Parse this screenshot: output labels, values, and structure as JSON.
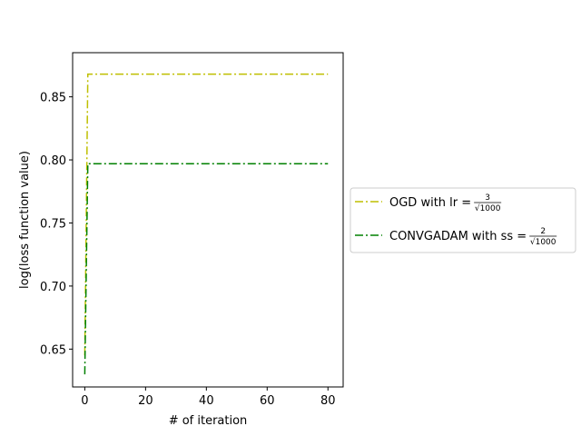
{
  "chart_data": {
    "type": "line",
    "title": "",
    "xlabel": "# of iteration",
    "ylabel": "log(loss function value)",
    "xlim": [
      -4,
      85
    ],
    "ylim": [
      0.62,
      0.885
    ],
    "xticks": [
      0,
      20,
      40,
      60,
      80
    ],
    "yticks": [
      0.65,
      0.7,
      0.75,
      0.8,
      0.85
    ],
    "ytick_labels": [
      "0.65",
      "0.70",
      "0.75",
      "0.80",
      "0.85"
    ],
    "grid": false,
    "legend_position": "outside-right",
    "series": [
      {
        "name": "OGD with lr = 3/√1000",
        "legend_prefix": "OGD with lr = ",
        "frac_num": "3",
        "frac_den": "√1000",
        "color": "#bfbf00",
        "linestyle": "dashdot",
        "x": [
          0,
          1,
          80
        ],
        "y": [
          0.645,
          0.868,
          0.868
        ]
      },
      {
        "name": "CONVGADAM with ss = 2/√1000",
        "legend_prefix": "CONVGADAM with ss = ",
        "frac_num": "2",
        "frac_den": "√1000",
        "color": "#008000",
        "linestyle": "dashdot",
        "x": [
          0,
          1,
          80
        ],
        "y": [
          0.63,
          0.797,
          0.797
        ]
      }
    ]
  }
}
